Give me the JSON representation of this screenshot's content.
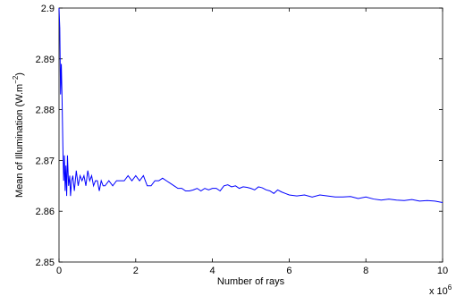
{
  "chart_data": {
    "type": "line",
    "title": "",
    "xlabel": "Number of rays",
    "ylabel": "Mean of Illumination (W.m",
    "ylabel_unit_exponent": "−2",
    "ylabel_suffix": ")",
    "x_multiplier_label": "x 10",
    "x_multiplier_exponent": "6",
    "xlim": [
      0,
      10
    ],
    "ylim": [
      2.85,
      2.9
    ],
    "x_ticks": [
      "0",
      "2",
      "4",
      "6",
      "8",
      "10"
    ],
    "y_ticks": [
      "2.85",
      "2.86",
      "2.87",
      "2.88",
      "2.89",
      "2.9"
    ],
    "grid": false,
    "legend": false,
    "series": [
      {
        "color": "#0000ff",
        "x": [
          0.0,
          0.02,
          0.04,
          0.06,
          0.08,
          0.1,
          0.12,
          0.14,
          0.16,
          0.18,
          0.2,
          0.22,
          0.25,
          0.28,
          0.3,
          0.33,
          0.36,
          0.4,
          0.45,
          0.5,
          0.55,
          0.6,
          0.65,
          0.7,
          0.75,
          0.8,
          0.85,
          0.9,
          0.95,
          1.0,
          1.05,
          1.1,
          1.15,
          1.2,
          1.3,
          1.4,
          1.5,
          1.6,
          1.7,
          1.8,
          1.9,
          2.0,
          2.1,
          2.2,
          2.3,
          2.4,
          2.5,
          2.6,
          2.7,
          2.8,
          2.9,
          3.0,
          3.1,
          3.2,
          3.3,
          3.4,
          3.5,
          3.6,
          3.7,
          3.8,
          3.9,
          4.0,
          4.1,
          4.2,
          4.3,
          4.4,
          4.5,
          4.6,
          4.7,
          4.8,
          4.9,
          5.0,
          5.1,
          5.2,
          5.3,
          5.4,
          5.5,
          5.6,
          5.7,
          5.8,
          5.9,
          6.0,
          6.2,
          6.4,
          6.6,
          6.8,
          7.0,
          7.2,
          7.4,
          7.6,
          7.8,
          8.0,
          8.2,
          8.4,
          8.6,
          8.8,
          9.0,
          9.2,
          9.4,
          9.6,
          9.8,
          10.0
        ],
        "y": [
          2.9,
          2.896,
          2.883,
          2.889,
          2.882,
          2.873,
          2.866,
          2.871,
          2.864,
          2.869,
          2.863,
          2.871,
          2.865,
          2.867,
          2.863,
          2.866,
          2.867,
          2.864,
          2.868,
          2.865,
          2.867,
          2.866,
          2.867,
          2.865,
          2.868,
          2.866,
          2.867,
          2.865,
          2.866,
          2.866,
          2.864,
          2.866,
          2.865,
          2.865,
          2.866,
          2.865,
          2.866,
          2.866,
          2.866,
          2.867,
          2.866,
          2.867,
          2.866,
          2.867,
          2.865,
          2.865,
          2.866,
          2.866,
          2.8665,
          2.866,
          2.8655,
          2.865,
          2.8645,
          2.8645,
          2.864,
          2.864,
          2.8642,
          2.8645,
          2.864,
          2.8645,
          2.8642,
          2.8645,
          2.8645,
          2.864,
          2.865,
          2.8652,
          2.8648,
          2.865,
          2.8645,
          2.8648,
          2.8647,
          2.8645,
          2.8642,
          2.8648,
          2.8646,
          2.8642,
          2.864,
          2.8635,
          2.8642,
          2.8638,
          2.8635,
          2.8632,
          2.863,
          2.8632,
          2.8628,
          2.8632,
          2.863,
          2.8628,
          2.8628,
          2.8629,
          2.8625,
          2.8628,
          2.8624,
          2.8622,
          2.8624,
          2.8622,
          2.8621,
          2.8623,
          2.862,
          2.8621,
          2.862,
          2.8617
        ]
      }
    ]
  }
}
